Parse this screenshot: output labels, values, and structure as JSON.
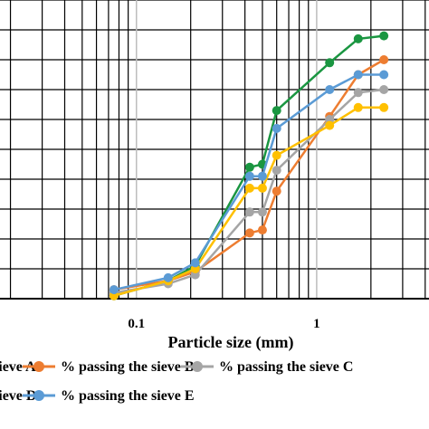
{
  "chart_data": {
    "type": "line",
    "xlabel": "Particle size (mm)",
    "ylabel": "",
    "title": "",
    "x_scale": "log",
    "xlim": [
      0.0175,
      4.2
    ],
    "ylim": [
      0,
      100
    ],
    "x_ticks": [
      {
        "value": 0.1,
        "label": "0.1"
      },
      {
        "value": 1,
        "label": "1"
      }
    ],
    "vertical_grid": [
      0.02,
      0.03,
      0.04,
      0.05,
      0.06,
      0.07,
      0.08,
      0.09,
      0.2,
      0.3,
      0.4,
      0.5,
      0.6,
      0.7,
      0.8,
      0.9,
      2,
      3,
      4
    ],
    "horizontal_grid": [
      10,
      20,
      30,
      40,
      50,
      60,
      70,
      80,
      90,
      100
    ],
    "grid": true,
    "legend": {
      "position": "bottom",
      "entries": [
        {
          "label": "% passing the sieve A",
          "row": 0
        },
        {
          "label": "% passing the sieve B",
          "row": 0
        },
        {
          "label": "% passing the sieve C",
          "row": 0
        },
        {
          "label": "% passing the sieve D",
          "row": 1
        },
        {
          "label": "% passing the sieve E",
          "row": 1
        }
      ]
    },
    "series": [
      {
        "name": "% passing the sieve A",
        "color": "#1a9641",
        "x": [
          0.075,
          0.15,
          0.212,
          0.425,
          0.5,
          0.6,
          1.18,
          1.7,
          2.36
        ],
        "y": [
          1,
          6,
          11,
          44,
          45,
          63,
          79,
          87,
          88
        ]
      },
      {
        "name": "% passing the sieve B",
        "color": "#ed7d31",
        "x": [
          0.075,
          0.15,
          0.212,
          0.425,
          0.5,
          0.6,
          1.18,
          1.7,
          2.36
        ],
        "y": [
          3,
          6,
          9,
          22,
          23,
          36,
          61,
          75,
          80
        ]
      },
      {
        "name": "% passing the sieve C",
        "color": "#a5a5a5",
        "x": [
          0.075,
          0.15,
          0.212,
          0.425,
          0.5,
          0.6,
          1.18,
          1.7,
          2.36
        ],
        "y": [
          2,
          5,
          8,
          29,
          29,
          43,
          60,
          69,
          70
        ]
      },
      {
        "name": "% passing the sieve D",
        "color": "#ffc000",
        "x": [
          0.075,
          0.15,
          0.212,
          0.425,
          0.5,
          0.6,
          1.18,
          1.7,
          2.36
        ],
        "y": [
          1,
          6,
          10,
          37,
          37,
          48,
          58,
          64,
          64
        ]
      },
      {
        "name": "% passing the sieve E",
        "color": "#5b9bd5",
        "x": [
          0.075,
          0.15,
          0.212,
          0.425,
          0.5,
          0.6,
          1.18,
          1.7,
          2.36
        ],
        "y": [
          3,
          7,
          12,
          41,
          41,
          57,
          70,
          75,
          75
        ]
      }
    ]
  }
}
